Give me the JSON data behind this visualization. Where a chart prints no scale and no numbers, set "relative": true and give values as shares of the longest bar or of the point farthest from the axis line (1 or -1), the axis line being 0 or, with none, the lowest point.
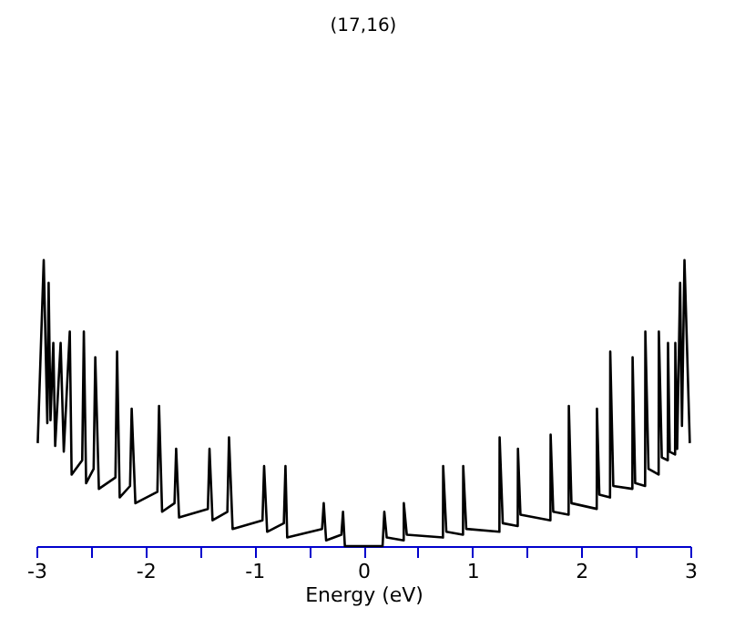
{
  "chart_data": {
    "type": "line",
    "title": "(17,16)",
    "xlabel": "Energy (eV)",
    "relative": true,
    "tick_labels": "x",
    "grid": false,
    "marker": "none",
    "line_style": "solid",
    "xlim": [
      -3,
      3
    ],
    "xticks": [
      -3,
      {
        "value": -2.5,
        "label": null
      },
      -2,
      {
        "value": -1.5,
        "label": null
      },
      -1,
      {
        "value": -0.5,
        "label": null
      },
      0,
      {
        "value": 0.5,
        "label": null
      },
      1,
      {
        "value": 1.5,
        "label": null
      },
      2,
      {
        "value": 2.5,
        "label": null
      },
      3
    ],
    "series": [
      {
        "color": "#000000",
        "x": [
          -2.988,
          -2.933,
          -2.9,
          -2.888,
          -2.871,
          -2.845,
          -2.828,
          -2.778,
          -2.749,
          -2.694,
          -2.677,
          -2.58,
          -2.565,
          -2.544,
          -2.475,
          -2.46,
          -2.427,
          -2.275,
          -2.26,
          -2.236,
          -2.141,
          -2.126,
          -2.092,
          -1.89,
          -1.875,
          -1.847,
          -1.733,
          -1.718,
          -1.691,
          -1.427,
          -1.412,
          -1.384,
          -1.248,
          -1.233,
          -1.2,
          -0.926,
          -0.911,
          -0.883,
          -0.73,
          -0.715,
          -0.699,
          -0.379,
          -0.364,
          -0.342,
          -0.202,
          -0.187,
          -0.17,
          0.176,
          0.192,
          0.214,
          0.37,
          0.371,
          0.398,
          0.73,
          0.732,
          0.761,
          0.914,
          0.916,
          0.944,
          1.248,
          1.25,
          1.279,
          1.416,
          1.418,
          1.441,
          1.716,
          1.718,
          1.742,
          1.883,
          1.885,
          1.909,
          2.141,
          2.143,
          2.165,
          2.263,
          2.265,
          2.293,
          2.468,
          2.47,
          2.494,
          2.585,
          2.587,
          2.616,
          2.709,
          2.711,
          2.738,
          2.793,
          2.795,
          2.811,
          2.86,
          2.862,
          2.879,
          2.906,
          2.923,
          2.946,
          2.995
        ],
        "values": [
          0.36,
          1.0,
          0.43,
          0.92,
          0.44,
          0.71,
          0.35,
          0.71,
          0.33,
          0.75,
          0.25,
          0.3,
          0.75,
          0.22,
          0.27,
          0.66,
          0.2,
          0.24,
          0.68,
          0.17,
          0.21,
          0.48,
          0.15,
          0.19,
          0.49,
          0.12,
          0.15,
          0.34,
          0.1,
          0.13,
          0.34,
          0.09,
          0.12,
          0.38,
          0.06,
          0.09,
          0.28,
          0.05,
          0.08,
          0.28,
          0.03,
          0.06,
          0.15,
          0.02,
          0.04,
          0.12,
          0,
          0,
          0.12,
          0.03,
          0.02,
          0.15,
          0.04,
          0.03,
          0.28,
          0.05,
          0.04,
          0.28,
          0.06,
          0.05,
          0.38,
          0.08,
          0.07,
          0.34,
          0.11,
          0.09,
          0.39,
          0.12,
          0.11,
          0.49,
          0.15,
          0.13,
          0.48,
          0.18,
          0.17,
          0.68,
          0.21,
          0.2,
          0.66,
          0.22,
          0.21,
          0.75,
          0.27,
          0.25,
          0.75,
          0.31,
          0.3,
          0.71,
          0.33,
          0.32,
          0.71,
          0.34,
          0.92,
          0.42,
          1.0,
          0.36
        ]
      }
    ]
  }
}
